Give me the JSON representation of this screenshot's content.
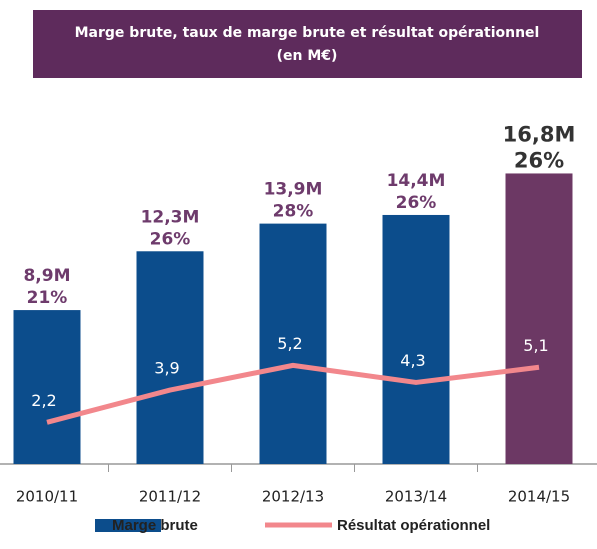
{
  "chart_data": {
    "type": "bar_line",
    "title": [
      "Marge brute, taux de marge brute  et résultat opérationnel",
      "(en M€)"
    ],
    "categories": [
      "2010/11",
      "2011/12",
      "2012/13",
      "2013/14",
      "2014/15"
    ],
    "series": [
      {
        "name": "Marge brute",
        "type": "bar",
        "color": "#0c4d8c",
        "colors": [
          "#0c4d8c",
          "#0c4d8c",
          "#0c4d8c",
          "#0c4d8c",
          "#6c3864"
        ],
        "values": [
          8.9,
          12.3,
          13.9,
          14.4,
          16.8
        ],
        "value_labels": [
          "8,9M",
          "12,3M",
          "13,9M",
          "14,4M",
          "16,8M"
        ],
        "rate_labels": [
          "21%",
          "26%",
          "28%",
          "26%",
          "26%"
        ]
      },
      {
        "name": "Résultat opérationnel",
        "type": "line",
        "axis": "y2",
        "color": "#f2878c",
        "values": [
          2.2,
          3.9,
          5.2,
          4.3,
          5.1
        ],
        "value_labels": [
          "2,2",
          "3,9",
          "5,2",
          "4,3",
          "5,1"
        ]
      }
    ],
    "ylim": [
      0,
      17
    ],
    "y2lim": [
      0,
      15.5
    ],
    "title_color": "#5e2b5c"
  }
}
